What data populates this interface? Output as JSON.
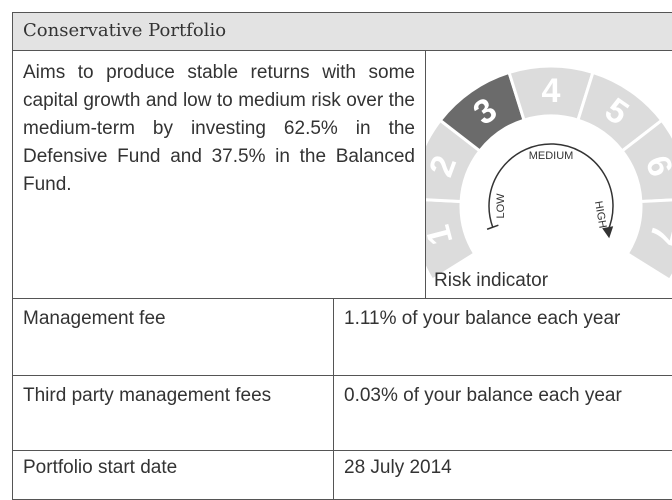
{
  "header": {
    "title": "Conservative Portfolio"
  },
  "description": "Aims to produce stable returns with some capital growth and low to medium risk over the medium-term by investing 62.5% in the Defensive Fund and 37.5% in the Balanced Fund.",
  "risk_indicator": {
    "label": "Risk indicator",
    "levels": [
      "1",
      "2",
      "3",
      "4",
      "5",
      "6",
      "7"
    ],
    "selected_level": 3,
    "scale_labels": [
      "LOW",
      "MEDIUM",
      "HIGH"
    ]
  },
  "table": {
    "rows": [
      [
        "Management fee",
        "1.11% of your balance each year"
      ],
      [
        "Third party management fees",
        "0.03% of your balance each year"
      ],
      [
        "Portfolio start date",
        "28 July 2014"
      ]
    ]
  }
}
